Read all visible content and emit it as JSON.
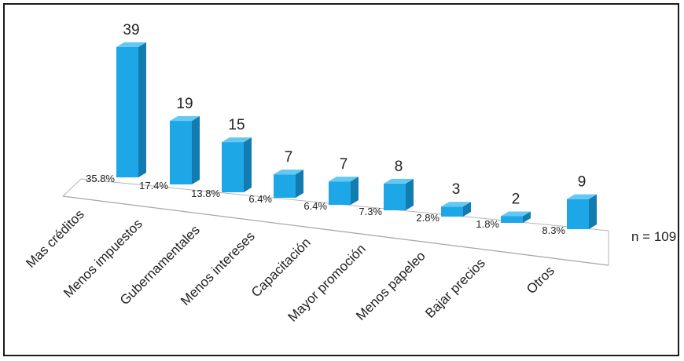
{
  "chart_data": {
    "type": "bar",
    "title": "",
    "xlabel": "",
    "ylabel": "",
    "categories": [
      "Mas créditos",
      "Menos impuestos",
      "Gubernamentales",
      "Menos intereses",
      "Capacitación",
      "Mayor promoción",
      "Menos papeleo",
      "Bajar precios",
      "Otros"
    ],
    "values": [
      39,
      19,
      15,
      7,
      7,
      8,
      3,
      2,
      9
    ],
    "percent_labels": [
      "35.8%",
      "17.4%",
      "13.8%",
      "6.4%",
      "6.4%",
      "7.3%",
      "2.8%",
      "1.8%",
      "8.3%"
    ],
    "n_label": "n = 109",
    "ylim": [
      0,
      40
    ],
    "grid": false,
    "legend": "none",
    "bar_color": "#1EA7E6",
    "bar_side_color": "#127BB0",
    "bar_top_color": "#64C9F2"
  }
}
